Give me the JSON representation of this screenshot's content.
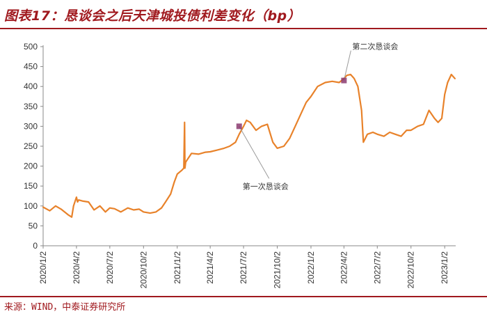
{
  "header": {
    "title": "图表17：恳谈会之后天津城投债利差变化（bp）"
  },
  "footer": {
    "source": "来源：WIND，中泰证券研究所"
  },
  "colors": {
    "line": "#E8822A",
    "accent": "#A0191E",
    "marker": "#8B3A70"
  },
  "chart_data": {
    "type": "line",
    "xlabel": "",
    "ylabel": "",
    "ylim": [
      0,
      500
    ],
    "yticks": [
      0,
      50,
      100,
      150,
      200,
      250,
      300,
      350,
      400,
      450,
      500
    ],
    "xlim": [
      "2020-01-02",
      "2023-02-01"
    ],
    "xticks": [
      "2020/1/2",
      "2020/4/2",
      "2020/7/2",
      "2020/10/2",
      "2021/1/2",
      "2021/4/2",
      "2021/7/2",
      "2021/10/2",
      "2022/1/2",
      "2022/4/2",
      "2022/7/2",
      "2022/10/2",
      "2023/1/2"
    ],
    "grid": false,
    "legend": "none",
    "series": [
      {
        "x": [
          "2020-01-02",
          "2020-01-20",
          "2020-02-05",
          "2020-02-20",
          "2020-03-10",
          "2020-03-20",
          "2020-03-25",
          "2020-04-02",
          "2020-04-05",
          "2020-04-08",
          "2020-04-20",
          "2020-05-05",
          "2020-05-20",
          "2020-06-05",
          "2020-06-20",
          "2020-07-02",
          "2020-07-15",
          "2020-08-01",
          "2020-08-20",
          "2020-09-05",
          "2020-09-20",
          "2020-10-02",
          "2020-10-20",
          "2020-11-05",
          "2020-11-20",
          "2020-12-01",
          "2020-12-15",
          "2020-12-25",
          "2021-01-02",
          "2021-01-15",
          "2021-01-20",
          "2021-01-22",
          "2021-01-23",
          "2021-01-25",
          "2021-02-01",
          "2021-02-10",
          "2021-03-01",
          "2021-03-20",
          "2021-04-02",
          "2021-04-20",
          "2021-05-10",
          "2021-05-25",
          "2021-06-10",
          "2021-06-20",
          "2021-07-02",
          "2021-07-10",
          "2021-07-20",
          "2021-08-05",
          "2021-08-20",
          "2021-09-05",
          "2021-09-20",
          "2021-10-02",
          "2021-10-20",
          "2021-11-05",
          "2021-11-20",
          "2021-12-05",
          "2021-12-20",
          "2022-01-02",
          "2022-01-20",
          "2022-02-10",
          "2022-03-01",
          "2022-03-20",
          "2022-04-02",
          "2022-04-10",
          "2022-04-20",
          "2022-04-30",
          "2022-05-10",
          "2022-05-20",
          "2022-05-25",
          "2022-06-05",
          "2022-06-20",
          "2022-07-02",
          "2022-07-20",
          "2022-08-05",
          "2022-08-20",
          "2022-09-05",
          "2022-09-20",
          "2022-10-02",
          "2022-10-20",
          "2022-11-05",
          "2022-11-20",
          "2022-12-05",
          "2022-12-15",
          "2022-12-25",
          "2023-01-02",
          "2023-01-10",
          "2023-01-20",
          "2023-01-30"
        ],
        "values": [
          97,
          88,
          100,
          92,
          78,
          72,
          100,
          122,
          110,
          115,
          112,
          110,
          90,
          100,
          85,
          95,
          93,
          85,
          95,
          90,
          92,
          85,
          82,
          85,
          95,
          110,
          130,
          160,
          180,
          190,
          195,
          310,
          195,
          210,
          220,
          232,
          230,
          235,
          236,
          240,
          245,
          250,
          260,
          280,
          300,
          315,
          310,
          290,
          300,
          305,
          260,
          245,
          250,
          270,
          300,
          330,
          360,
          375,
          400,
          410,
          413,
          410,
          420,
          428,
          430,
          420,
          400,
          340,
          260,
          280,
          285,
          280,
          275,
          285,
          280,
          275,
          290,
          290,
          300,
          305,
          340,
          320,
          310,
          320,
          380,
          410,
          430,
          420
        ]
      }
    ],
    "markers": [
      {
        "x": "2021-06-20",
        "y": 300,
        "label": "第一次恳谈会"
      },
      {
        "x": "2022-04-02",
        "y": 415,
        "label": "第二次恳谈会"
      }
    ]
  }
}
